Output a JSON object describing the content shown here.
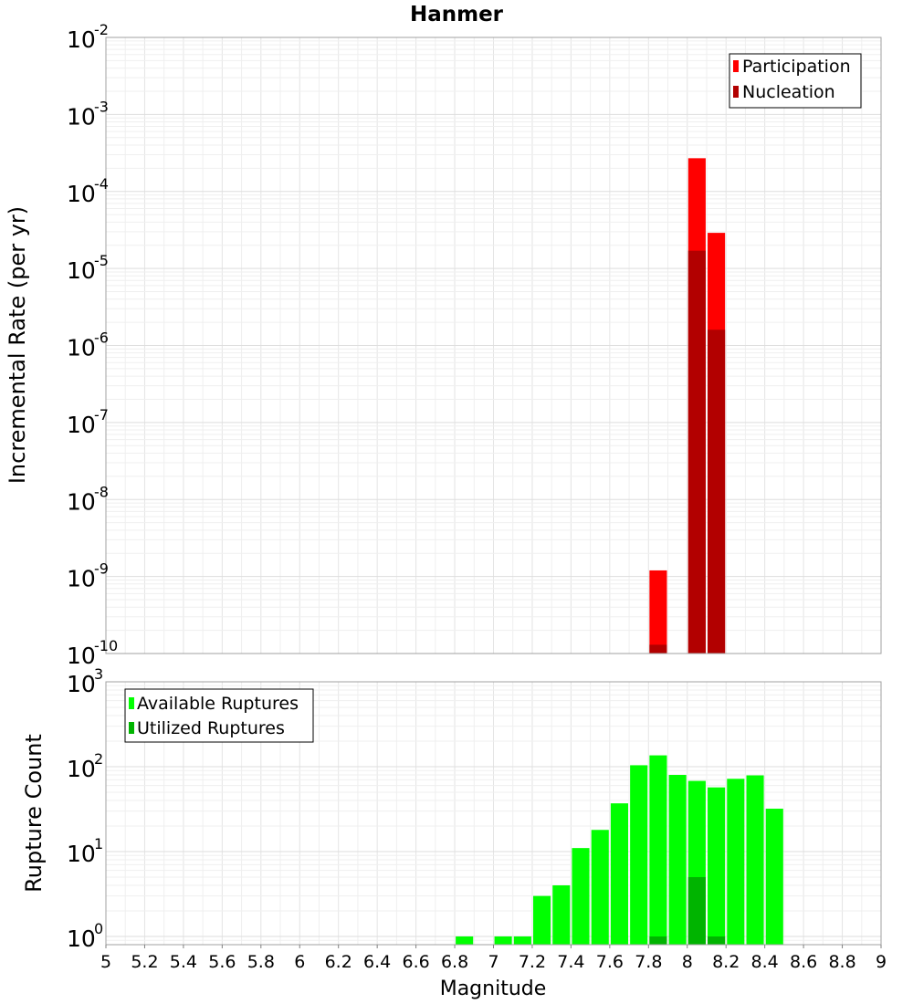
{
  "chart_data": [
    {
      "type": "bar",
      "title": "Hanmer",
      "xlabel": "Magnitude",
      "ylabel": "Incremental Rate (per yr)",
      "yscale": "log",
      "ylim": [
        1e-10,
        0.01
      ],
      "xlim": [
        5,
        9
      ],
      "grid": true,
      "legend_position": "top-right",
      "overlay": true,
      "series": [
        {
          "name": "Participation",
          "color": "#ff0000",
          "x": [
            7.85,
            8.05,
            8.15
          ],
          "values": [
            1.2e-09,
            0.00027,
            2.9e-05
          ]
        },
        {
          "name": "Nucleation",
          "color": "#b20000",
          "x": [
            7.85,
            8.05,
            8.15
          ],
          "values": [
            1.3e-10,
            1.7e-05,
            1.6e-06
          ]
        }
      ]
    },
    {
      "type": "bar",
      "xlabel": "Magnitude",
      "ylabel": "Rupture Count",
      "yscale": "log",
      "ylim": [
        0.8,
        1000
      ],
      "xlim": [
        5,
        9
      ],
      "grid": true,
      "legend_position": "top-left",
      "overlay": true,
      "series": [
        {
          "name": "Available Ruptures",
          "color": "#00ff00",
          "x": [
            6.85,
            7.05,
            7.15,
            7.25,
            7.35,
            7.45,
            7.55,
            7.65,
            7.75,
            7.85,
            7.95,
            8.05,
            8.15,
            8.25,
            8.35,
            8.45
          ],
          "values": [
            1,
            1,
            1,
            3,
            4,
            11,
            18,
            37,
            104,
            136,
            80,
            68,
            57,
            72,
            79,
            32
          ]
        },
        {
          "name": "Utilized Ruptures",
          "color": "#00b400",
          "x": [
            7.85,
            8.05,
            8.15
          ],
          "values": [
            1,
            5,
            1
          ]
        }
      ],
      "xticks": [
        "5",
        "5.2",
        "5.4",
        "5.6",
        "5.8",
        "6",
        "6.2",
        "6.4",
        "6.6",
        "6.8",
        "7",
        "7.2",
        "7.4",
        "7.6",
        "7.8",
        "8",
        "8.2",
        "8.4",
        "8.6",
        "8.8",
        "9"
      ]
    }
  ]
}
